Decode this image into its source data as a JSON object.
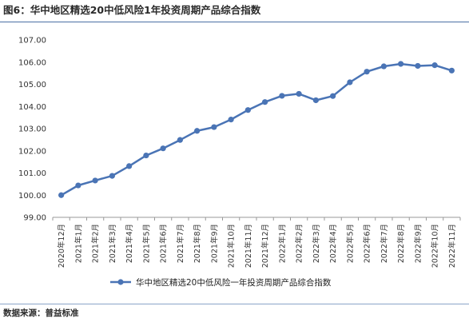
{
  "figure": {
    "title": "图6：华中地区精选20中低风险1年投资周期产品综合指数",
    "source": "数据来源：普益标准"
  },
  "chart_data": {
    "type": "line",
    "title": "图6：华中地区精选20中低风险1年投资周期产品综合指数",
    "xlabel": "",
    "ylabel": "",
    "ylim": [
      99.0,
      107.0
    ],
    "yticks": [
      "99.00",
      "100.00",
      "101.00",
      "102.00",
      "103.00",
      "104.00",
      "105.00",
      "106.00",
      "107.00"
    ],
    "grid": false,
    "legend": "bottom",
    "categories": [
      "2020年12月",
      "2021年1月",
      "2021年2月",
      "2021年3月",
      "2021年4月",
      "2021年5月",
      "2021年6月",
      "2021年7月",
      "2021年8月",
      "2021年9月",
      "2021年10月",
      "2021年11月",
      "2021年12月",
      "2022年1月",
      "2022年2月",
      "2022年3月",
      "2022年4月",
      "2022年5月",
      "2022年6月",
      "2022年7月",
      "2022年8月",
      "2022年9月",
      "2022年10月",
      "2022年11月"
    ],
    "series": [
      {
        "name": "华中地区精选20中低风险一年投资周期产品综合指数",
        "color": "#4a74b5",
        "values": [
          100.0,
          100.44,
          100.66,
          100.87,
          101.31,
          101.79,
          102.11,
          102.49,
          102.9,
          103.07,
          103.41,
          103.84,
          104.2,
          104.48,
          104.57,
          104.28,
          104.47,
          105.09,
          105.57,
          105.81,
          105.92,
          105.83,
          105.86,
          105.62
        ]
      }
    ]
  }
}
